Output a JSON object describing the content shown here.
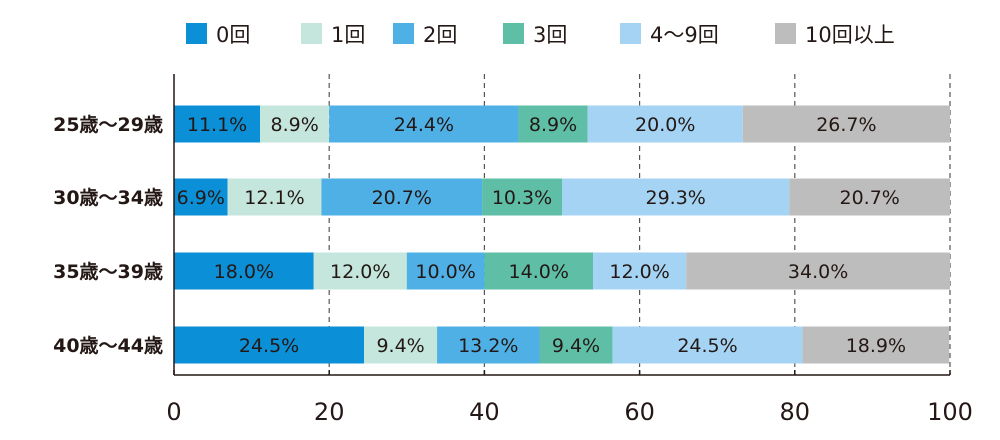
{
  "chart_data": {
    "type": "bar",
    "orientation": "horizontal",
    "stacked": true,
    "categories": [
      "25歳〜29歳",
      "30歳〜34歳",
      "35歳〜39歳",
      "40歳〜44歳"
    ],
    "series": [
      {
        "name": "0回",
        "color": "#0b8fd6",
        "values": [
          11.1,
          6.9,
          18.0,
          24.5
        ],
        "labels": [
          "11.1%",
          "6.9%",
          "18.0%",
          "24.5%"
        ]
      },
      {
        "name": "1回",
        "color": "#c5e6dc",
        "values": [
          8.9,
          12.1,
          12.0,
          9.4
        ],
        "labels": [
          "8.9%",
          "12.1%",
          "12.0%",
          "9.4%"
        ]
      },
      {
        "name": "2回",
        "color": "#4fb0e5",
        "values": [
          24.4,
          20.7,
          10.0,
          13.2
        ],
        "labels": [
          "24.4%",
          "20.7%",
          "10.0%",
          "13.2%"
        ]
      },
      {
        "name": "3回",
        "color": "#5ebfa6",
        "values": [
          8.9,
          10.3,
          14.0,
          9.4
        ],
        "labels": [
          "8.9%",
          "10.3%",
          "14.0%",
          "9.4%"
        ]
      },
      {
        "name": "4〜9回",
        "color": "#a4d3f3",
        "values": [
          20.0,
          29.3,
          12.0,
          24.5
        ],
        "labels": [
          "20.0%",
          "29.3%",
          "12.0%",
          "24.5%"
        ]
      },
      {
        "name": "10回以上",
        "color": "#bdbdbd",
        "values": [
          26.7,
          20.7,
          34.0,
          18.9
        ],
        "labels": [
          "26.7%",
          "20.7%",
          "34.0%",
          "18.9%"
        ]
      }
    ],
    "xlim": [
      0,
      100
    ],
    "xticks": [
      0,
      20,
      40,
      60,
      80,
      100
    ],
    "xtick_labels": [
      "0",
      "20",
      "40",
      "60",
      "80",
      "100"
    ],
    "grid": "vertical dashed",
    "legend": "top"
  }
}
